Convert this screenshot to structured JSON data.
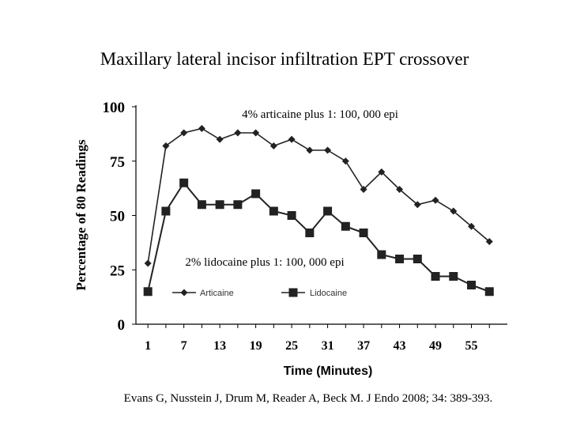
{
  "slide": {
    "title": "Maxillary lateral incisor infiltration EPT crossover",
    "citation": "Evans G, Nusstein J, Drum M, Reader A, Beck M. J Endo 2008; 34: 389-393."
  },
  "chart_data": {
    "type": "line",
    "xlabel": "Time (Minutes)",
    "ylabel": "Percentage of 80 Readings",
    "ylim": [
      0,
      100
    ],
    "yticks": [
      0,
      25,
      50,
      75,
      100
    ],
    "xlim": [
      -1,
      61
    ],
    "xticks": [
      1,
      7,
      13,
      19,
      25,
      31,
      37,
      43,
      49,
      55
    ],
    "x": [
      1,
      4,
      7,
      10,
      13,
      16,
      19,
      22,
      25,
      28,
      31,
      34,
      37,
      40,
      43,
      46,
      49,
      52,
      55,
      58
    ],
    "series": [
      {
        "name": "Articaine",
        "marker": "diamond",
        "annotation": "4% articaine plus 1: 100, 000 epi",
        "values": [
          28,
          82,
          88,
          90,
          85,
          88,
          88,
          82,
          85,
          80,
          80,
          75,
          62,
          70,
          62,
          55,
          57,
          52,
          45,
          38
        ]
      },
      {
        "name": "Lidocaine",
        "marker": "square",
        "annotation": "2% lidocaine plus 1: 100, 000 epi",
        "values": [
          15,
          52,
          65,
          55,
          55,
          55,
          60,
          52,
          50,
          42,
          52,
          45,
          42,
          32,
          30,
          30,
          22,
          22,
          18,
          15
        ]
      }
    ],
    "legend": "bottom-left inside plot",
    "grid": false,
    "colors": {
      "line": "#222222",
      "axis": "#000000"
    }
  }
}
